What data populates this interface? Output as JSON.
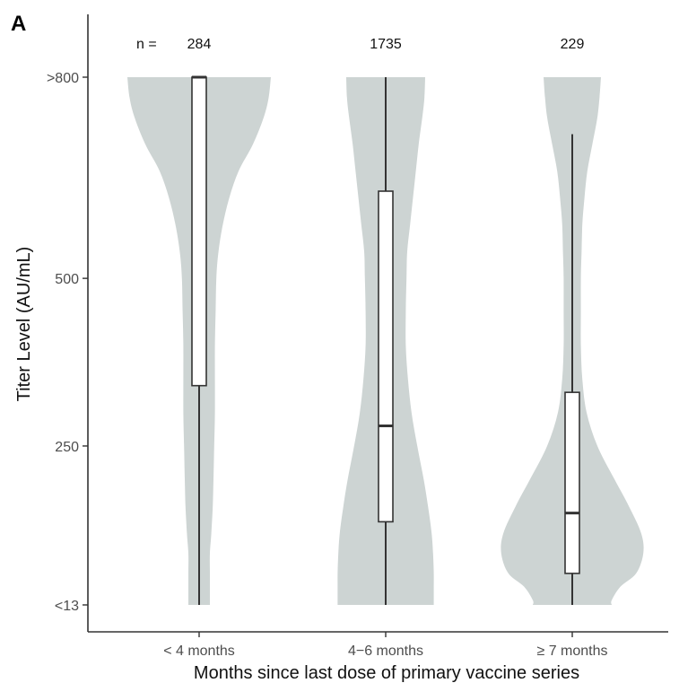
{
  "panel_label": "A",
  "n_prefix": "n =",
  "chart_data": {
    "type": "violin",
    "xlabel": "Months since last dose of primary vaccine series",
    "ylabel": "Titer Level (AU/mL)",
    "categories": [
      "< 4 months",
      "4−6 months",
      "≥ 7 months"
    ],
    "n": [
      "284",
      "1735",
      "229"
    ],
    "y_axis": {
      "ticks": [
        13,
        250,
        500,
        800
      ],
      "tick_labels": [
        "<13",
        "250",
        "500",
        ">800"
      ],
      "ylim": [
        13,
        800
      ]
    },
    "grid": false,
    "series": [
      {
        "category": "< 4 months",
        "box": {
          "whisker_low": 13,
          "q1": 340,
          "median": 800,
          "q3": 800,
          "whisker_high": 800
        },
        "density_profile": [
          [
            800,
            1.0
          ],
          [
            770,
            0.97
          ],
          [
            740,
            0.9
          ],
          [
            700,
            0.75
          ],
          [
            660,
            0.55
          ],
          [
            620,
            0.42
          ],
          [
            580,
            0.33
          ],
          [
            540,
            0.27
          ],
          [
            500,
            0.24
          ],
          [
            450,
            0.23
          ],
          [
            400,
            0.22
          ],
          [
            350,
            0.22
          ],
          [
            300,
            0.22
          ],
          [
            250,
            0.21
          ],
          [
            200,
            0.2
          ],
          [
            160,
            0.19
          ],
          [
            120,
            0.17
          ],
          [
            90,
            0.15
          ],
          [
            60,
            0.15
          ],
          [
            40,
            0.15
          ],
          [
            20,
            0.15
          ],
          [
            13,
            0.15
          ]
        ]
      },
      {
        "category": "4−6 months",
        "box": {
          "whisker_low": 13,
          "q1": 137,
          "median": 280,
          "q3": 630,
          "whisker_high": 800
        },
        "density_profile": [
          [
            800,
            0.55
          ],
          [
            770,
            0.54
          ],
          [
            740,
            0.51
          ],
          [
            700,
            0.46
          ],
          [
            660,
            0.42
          ],
          [
            620,
            0.38
          ],
          [
            580,
            0.34
          ],
          [
            540,
            0.3
          ],
          [
            500,
            0.29
          ],
          [
            450,
            0.28
          ],
          [
            400,
            0.28
          ],
          [
            350,
            0.31
          ],
          [
            300,
            0.36
          ],
          [
            250,
            0.44
          ],
          [
            200,
            0.53
          ],
          [
            160,
            0.59
          ],
          [
            120,
            0.64
          ],
          [
            90,
            0.66
          ],
          [
            60,
            0.67
          ],
          [
            40,
            0.67
          ],
          [
            20,
            0.67
          ],
          [
            13,
            0.67
          ]
        ]
      },
      {
        "category": "≥ 7 months",
        "box": {
          "whisker_low": 13,
          "q1": 60,
          "median": 150,
          "q3": 330,
          "whisker_high": 715
        },
        "density_profile": [
          [
            800,
            0.4
          ],
          [
            770,
            0.38
          ],
          [
            740,
            0.35
          ],
          [
            700,
            0.28
          ],
          [
            660,
            0.21
          ],
          [
            620,
            0.17
          ],
          [
            580,
            0.14
          ],
          [
            540,
            0.13
          ],
          [
            500,
            0.12
          ],
          [
            450,
            0.12
          ],
          [
            400,
            0.12
          ],
          [
            350,
            0.14
          ],
          [
            300,
            0.2
          ],
          [
            250,
            0.35
          ],
          [
            200,
            0.59
          ],
          [
            160,
            0.79
          ],
          [
            120,
            0.96
          ],
          [
            90,
            0.99
          ],
          [
            60,
            0.89
          ],
          [
            40,
            0.67
          ],
          [
            20,
            0.55
          ],
          [
            13,
            0.55
          ]
        ]
      }
    ],
    "colors": {
      "violin_fill": "#cdd4d3",
      "box_fill": "#ffffff",
      "line": "#333333",
      "axis": "#333333"
    }
  }
}
